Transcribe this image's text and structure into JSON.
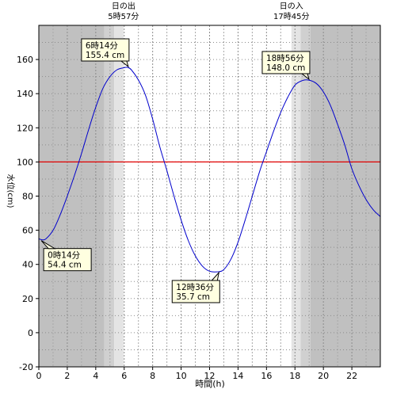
{
  "chart_data": {
    "type": "line",
    "xlabel": "時間(h)",
    "ylabel": "水位(cm)",
    "xlim": [
      0,
      24
    ],
    "ylim": [
      -20,
      180
    ],
    "x_ticks": [
      0,
      2,
      4,
      6,
      8,
      10,
      12,
      14,
      16,
      18,
      20,
      22
    ],
    "y_ticks": [
      -20,
      0,
      20,
      40,
      60,
      80,
      100,
      120,
      140,
      160
    ],
    "grid": true,
    "reference_line": {
      "value": 100,
      "color": "#e00000"
    },
    "colors": {
      "night": "#c0c0c0",
      "twilight_dark": "#d0d0d0",
      "twilight_light": "#e4e4e4",
      "day": "#ffffff",
      "series": "#0000cc",
      "annotation_fill": "#ffffe0"
    },
    "sun_events": [
      {
        "label": "日の出",
        "time_text": "5時57分",
        "hour": 5.95
      },
      {
        "label": "日の入",
        "time_text": "17時45分",
        "hour": 17.75
      }
    ],
    "shading": [
      {
        "kind": "night",
        "from": 0,
        "to": 4.6
      },
      {
        "kind": "twilight_dark",
        "from": 4.6,
        "to": 5.3
      },
      {
        "kind": "twilight_light",
        "from": 5.3,
        "to": 5.95
      },
      {
        "kind": "twilight_light",
        "from": 17.75,
        "to": 18.4
      },
      {
        "kind": "twilight_dark",
        "from": 18.4,
        "to": 19.1
      },
      {
        "kind": "night",
        "from": 19.1,
        "to": 24
      }
    ],
    "series": [
      {
        "x": [
          0,
          0.25,
          0.5,
          1,
          1.5,
          2,
          2.5,
          3,
          3.5,
          4,
          4.5,
          5,
          5.5,
          6,
          6.23,
          6.5,
          7,
          7.5,
          8,
          8.5,
          9,
          9.5,
          10,
          10.5,
          11,
          11.5,
          12,
          12.6,
          13,
          13.5,
          14,
          14.5,
          15,
          15.5,
          16,
          16.5,
          17,
          17.5,
          18,
          18.5,
          18.93,
          19.5,
          20,
          20.5,
          21,
          21.5,
          22,
          22.5,
          23,
          23.5,
          24
        ],
        "y": [
          55,
          54.4,
          55,
          60,
          69,
          80,
          92,
          105,
          119,
          132,
          143,
          150,
          154,
          155.2,
          155.4,
          154,
          148,
          139,
          125,
          109,
          95,
          80,
          66,
          54,
          45,
          39,
          36,
          35.7,
          37,
          43,
          53,
          66,
          80,
          94,
          106,
          118,
          129,
          138,
          145,
          147.6,
          148,
          146,
          141,
          133,
          122,
          110,
          96,
          86,
          78,
          72,
          68
        ]
      }
    ],
    "annotations": [
      {
        "time_text": "6時14分",
        "level_text": "155.4 cm",
        "x": 6.23,
        "y": 155.4,
        "position": "above"
      },
      {
        "time_text": "18時56分",
        "level_text": "148.0 cm",
        "x": 18.93,
        "y": 148.0,
        "position": "above"
      },
      {
        "time_text": "0時14分",
        "level_text": "54.4 cm",
        "x": 0.23,
        "y": 54.4,
        "position": "below"
      },
      {
        "time_text": "12時36分",
        "level_text": "35.7 cm",
        "x": 12.6,
        "y": 35.7,
        "position": "below"
      }
    ]
  }
}
